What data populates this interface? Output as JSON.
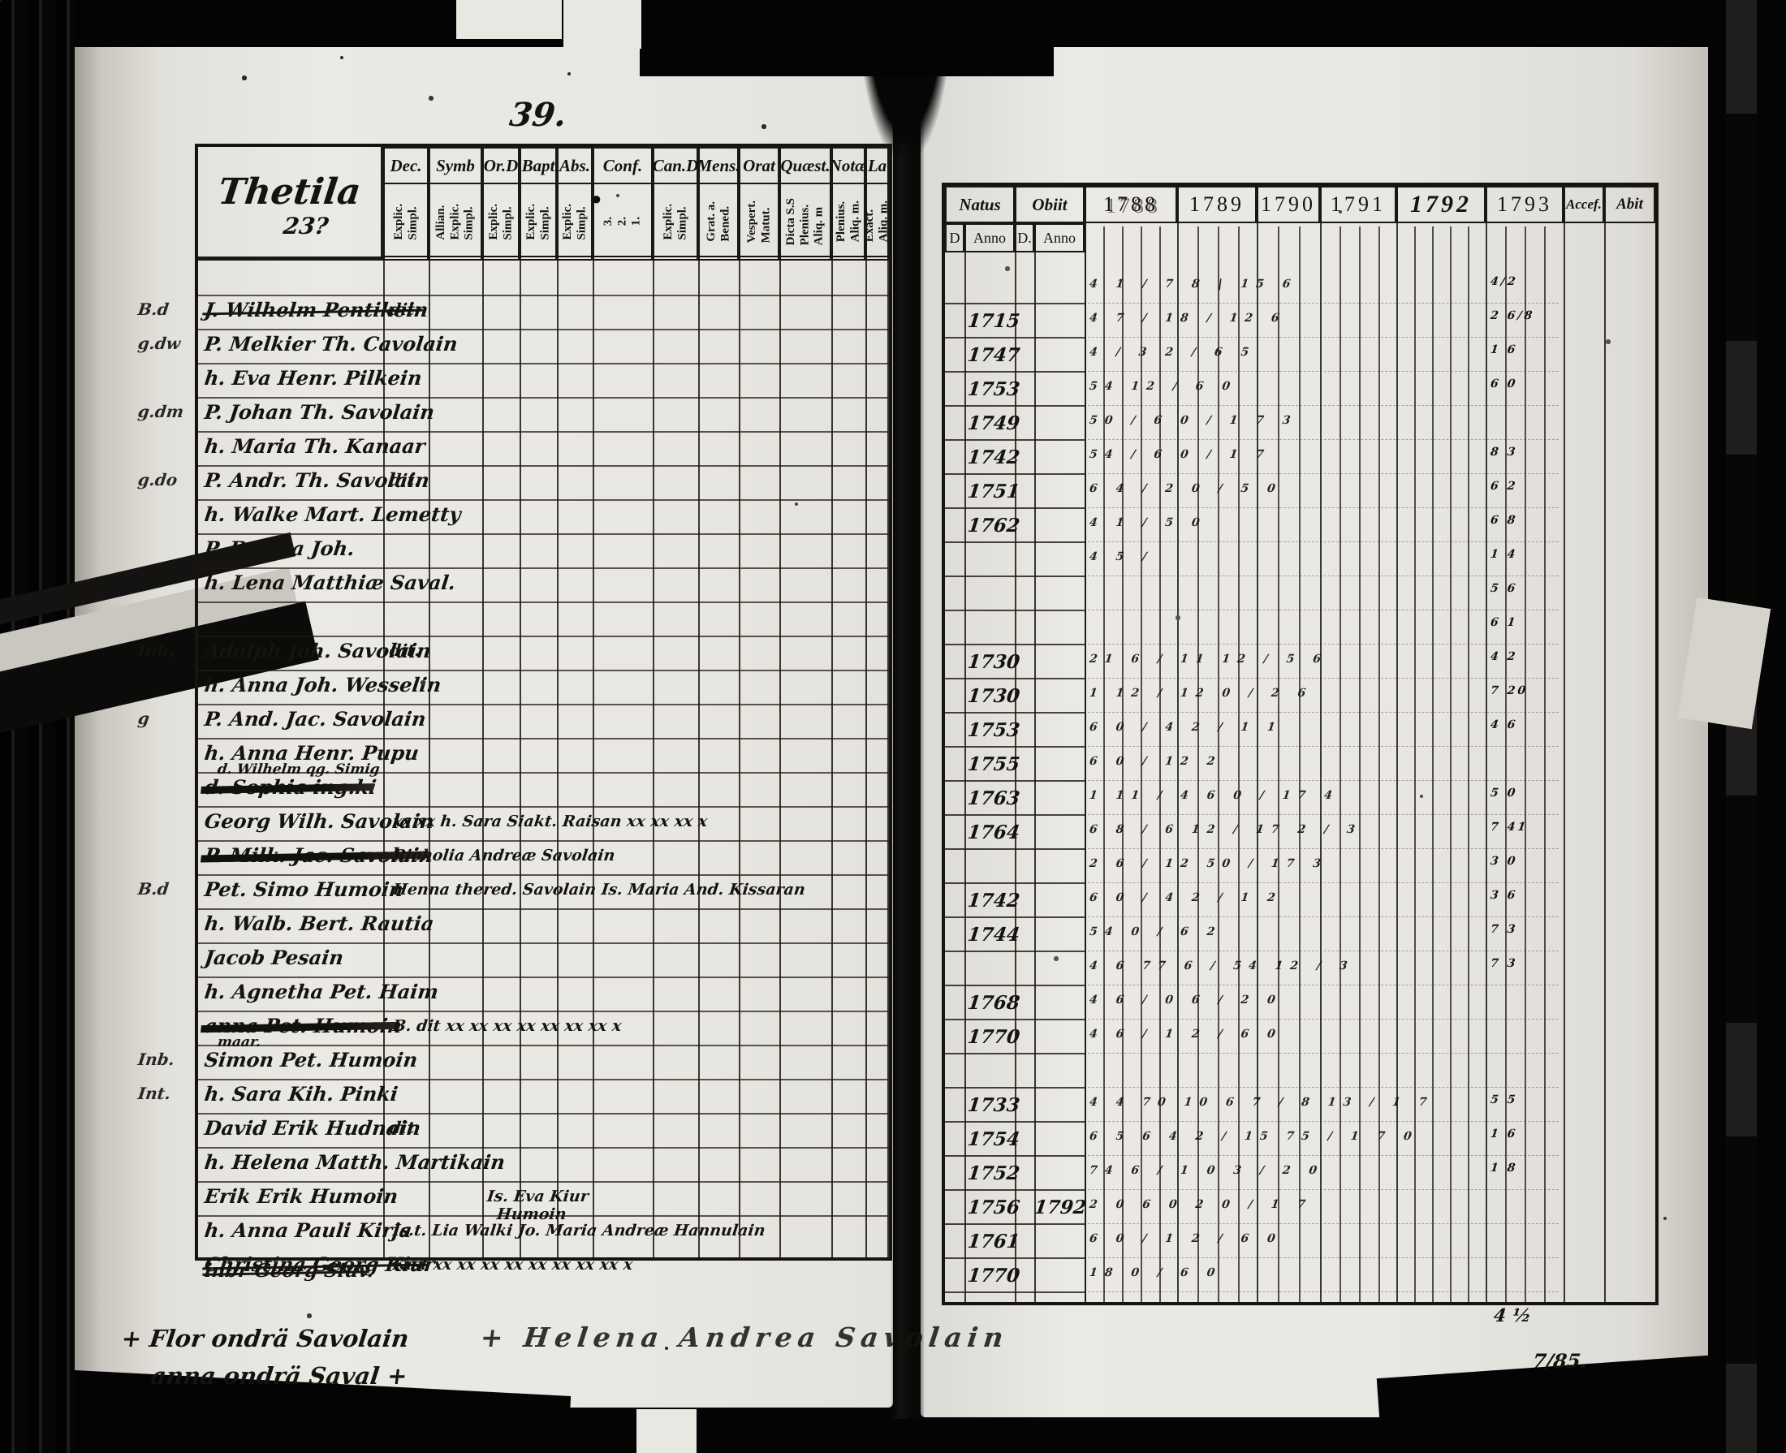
{
  "page_number": "39.",
  "left_page": {
    "title": "Thetila",
    "title_sub": "23?",
    "header_dot": "●",
    "columns": [
      {
        "label": "Dec.",
        "sub": "Explic.\nSimpl."
      },
      {
        "label": "Symb",
        "sub": "Allian.\nExplic.\nSimpl."
      },
      {
        "label": "Or.D",
        "sub": "Explic.\nSimpl."
      },
      {
        "label": "Bapt",
        "sub": "Explic.\nSimpl."
      },
      {
        "label": "Abs.",
        "sub": "Explic.\nSimpl."
      },
      {
        "label": "Conf.",
        "sub": "3.\n2.\n1."
      },
      {
        "label": "Can.D",
        "sub": "Explic.\nSimpl."
      },
      {
        "label": "Mens.",
        "sub": "Grat. a.\nBened."
      },
      {
        "label": "Orat",
        "sub": "Vespert.\nMatut."
      },
      {
        "label": "Quæst.",
        "sub": "Dicta S.S\nPlenius.\nAliq. m"
      },
      {
        "label": "Notæ",
        "sub": "Plenius.\nAliq. m."
      },
      {
        "label": "La",
        "sub": "Exact.\nAliq. m."
      }
    ],
    "rows": [
      {
        "name": ""
      },
      {
        "margin": "B.d",
        "name": "J. Wilhelm Pentikein",
        "struck": 1,
        "dec": "dit."
      },
      {
        "margin": "g.dw",
        "name": "P. Melkier Th. Cavolain"
      },
      {
        "name": "h. Eva Henr. Pilkein"
      },
      {
        "margin": "g.dm",
        "name": "P. Johan Th. Savolain"
      },
      {
        "name": "h. Maria Th. Kanaar"
      },
      {
        "margin": "g.do",
        "name": "P. Andr. Th. Savolain",
        "dec": "dit."
      },
      {
        "name": "h. Walke Mart. Lemetty"
      },
      {
        "name": "P. Bertha Joh."
      },
      {
        "name": "h. Lena Matthiæ Saval."
      },
      {
        "name": ""
      },
      {
        "margin": "Inh.",
        "name": "Adolph Joh. Savolain",
        "dec": "dit."
      },
      {
        "name": "h. Anna Joh. Wesselin"
      },
      {
        "margin": "g",
        "name": "P. And. Jac. Savolain"
      },
      {
        "name": "h. Anna Henr. Pupu"
      },
      {
        "name": "d. Sophia ing.ki",
        "struck": 2,
        "name2": "d. Wilhelm qg. Simig"
      },
      {
        "name": "Georg Wilh. Savolain",
        "overlay": "xx xx   h. Sara Siakt. Raisan   xx xx  xx  x"
      },
      {
        "name": "P. Milk. Jac. Savolain",
        "struck": 2,
        "overlay": "Riokolia Andreæ Savolain"
      },
      {
        "margin": "B.d",
        "name": "Pet. Simo Humoin",
        "overlay": "Henna thered. Savolain    Is. Maria And. Kissaran"
      },
      {
        "name": "h. Walb. Bert. Rautia"
      },
      {
        "name": "Jacob Pesain"
      },
      {
        "name": "h. Agnetha Pet. Haim"
      },
      {
        "name": "anna Pet. Humoin",
        "struck": 2,
        "overlay": "B. dit   xx xx xx xx xx xx xx x"
      },
      {
        "margin": "Inb.",
        "name": "Simon Pet. Humoin",
        "name2": "maar."
      },
      {
        "margin": "Int.",
        "name": "h. Sara Kih. Pinki"
      },
      {
        "name": "David Erik Hudnain",
        "dec": "dit"
      },
      {
        "name": "h. Helena Matth. Martikain"
      },
      {
        "name": "Erik Erik Humoin",
        "overlay": "Is. Eva Kiur",
        "overlay2": "Humoin",
        "indent": true
      },
      {
        "name": "h. Anna Pauli Kirja",
        "overlay": "Is.t. Lia Walki    Jo. Maria Andreæ Hannulain"
      },
      {
        "name": "Christina Georg Kiur",
        "struck": 1,
        "overlay": "Kist   xx xx xx xx xx xx xx xx x"
      }
    ],
    "below_row": "inbr Georg Siuv.",
    "footnotes": [
      "+ Flor ondrä Savolain",
      "anna ondrä Saval +",
      "+ Helena Andrea Savolain"
    ]
  },
  "right_page": {
    "natus_label": "Natus",
    "obiit_label": "Obiit",
    "d_label": "D",
    "anno_label": "Anno",
    "d2_label": "D.",
    "anno2_label": "Anno",
    "years": [
      "1788",
      "1789",
      "1790",
      "1791",
      "1792",
      "1793"
    ],
    "accel_label": "Accef.",
    "abit_label": "Abit",
    "rows": [
      {
        "natus": "",
        "marks": "4 1 / 7 8 | 15 6",
        "marks93": "4/2"
      },
      {
        "natus": "1715",
        "marks": "4 7 / 18 / 12 6",
        "marks93": "2 6/8"
      },
      {
        "natus": "1747",
        "marks": "4 / 3 2 / 6 5",
        "marks93": "1 6"
      },
      {
        "natus": "1753",
        "marks": "54 12 / 6 0",
        "marks93": "6 0"
      },
      {
        "natus": "1749",
        "marks": "50 / 6 0 / 1 7 3",
        "marks93": ""
      },
      {
        "natus": "1742",
        "marks": "54 / 6 0 / 1 7",
        "marks93": "8 3"
      },
      {
        "natus": "1751",
        "marks": "6 4 / 2 0 / 5 0",
        "marks93": "6 2"
      },
      {
        "natus": "1762",
        "marks": "4 1 / 5 0",
        "marks93": "6 8"
      },
      {
        "natus": "",
        "marks": "4 5 /",
        "marks93": "1 4"
      },
      {
        "natus": "",
        "marks": "",
        "marks93": "5 6"
      },
      {
        "natus": "",
        "marks": "",
        "marks93": "6 1"
      },
      {
        "natus": "1730",
        "marks": "21 6 / 11 12 / 5 6",
        "marks93": "4 2"
      },
      {
        "natus": "1730",
        "marks": "1 12 / 12 0 / 2 6",
        "marks93": "7 20"
      },
      {
        "natus": "1753",
        "marks": "6 0 / 4 2 / 1 1",
        "marks93": "4 6"
      },
      {
        "natus": "1755",
        "marks": "6 0 / 12 2",
        "marks93": ""
      },
      {
        "natus": "1763",
        "marks": "1 11 / 4 6 0 / 17 4",
        "marks93": "5 0"
      },
      {
        "natus": "1764",
        "marks": "6 8 / 6 12 / 17 2 / 3",
        "marks93": "7 41"
      },
      {
        "natus": "",
        "marks": "2 6 / 12 50 / 17 3",
        "marks93": "3 0"
      },
      {
        "natus": "1742",
        "marks": "6 0 / 4 2 / 1 2",
        "marks93": "3 6"
      },
      {
        "natus": "1744",
        "marks": "54 0 / 6 2",
        "marks93": "7 3"
      },
      {
        "natus": "",
        "marks": "4 6 77 6 / 54 12 / 3",
        "marks93": "7 3"
      },
      {
        "natus": "1768",
        "marks": "4 6 / 0 6 / 2 0",
        "marks93": ""
      },
      {
        "natus": "1770",
        "marks": "4 6 / 1 2 / 6 0",
        "marks93": ""
      },
      {
        "natus": "",
        "marks": "",
        "marks93": ""
      },
      {
        "natus": "1733",
        "marks": "4 4 70 10 6 7 / 8 13 / 1 7",
        "marks93": "5 5"
      },
      {
        "natus": "1754",
        "marks": "6 5 6 4 2 / 15 75 / 1 7 0",
        "marks93": "1 6"
      },
      {
        "natus": "1752",
        "marks": "74 6 / 1 0 3 / 2 0",
        "marks93": "1 8"
      },
      {
        "natus": "1756",
        "obiit": "1792",
        "marks": "2 0 6 0 2 0 / 1 7",
        "marks93": ""
      },
      {
        "natus": "1761",
        "marks": "6 0 / 1 2 / 6 0",
        "marks93": ""
      },
      {
        "natus": "1770",
        "marks": "18 0 / 6 0",
        "marks93": ""
      }
    ],
    "corner_marks": [
      "4 ½",
      "7/85."
    ]
  }
}
